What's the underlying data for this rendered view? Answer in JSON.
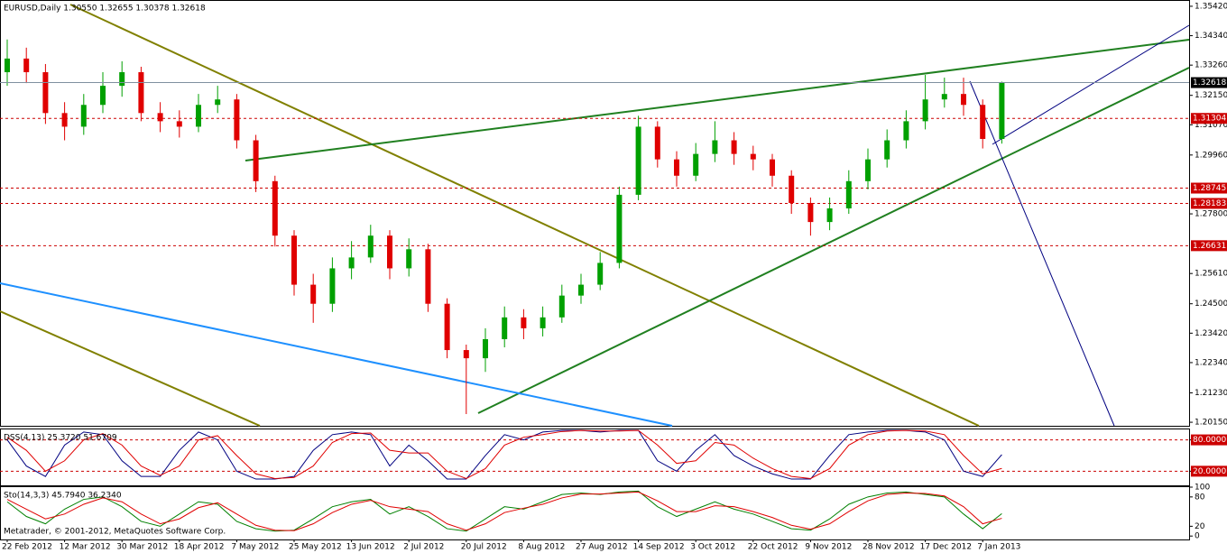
{
  "chart_data": [
    {
      "type": "candlestick",
      "title": "EURUSD,Daily 1.30550 1.32655 1.30378 1.32618",
      "categories": [
        "22 Feb 2012",
        null,
        null,
        "12 Mar 2012",
        null,
        null,
        "30 Mar 2012",
        null,
        null,
        "18 Apr 2012",
        null,
        null,
        "7 May 2012",
        null,
        null,
        "25 May 2012",
        null,
        null,
        "13 Jun 2012",
        null,
        null,
        "2 Jul 2012",
        null,
        null,
        "20 Jul 2012",
        null,
        null,
        "8 Aug 2012",
        null,
        null,
        "27 Aug 2012",
        null,
        null,
        "14 Sep 2012",
        null,
        null,
        "3 Oct 2012",
        null,
        null,
        "22 Oct 2012",
        null,
        null,
        "9 Nov 2012",
        null,
        null,
        "28 Nov 2012",
        null,
        null,
        "17 Dec 2012",
        null,
        null,
        "7 Jan 2013",
        null
      ],
      "open": [
        1.33,
        1.335,
        1.33,
        1.315,
        1.31,
        1.318,
        1.325,
        1.33,
        1.315,
        1.312,
        1.31,
        1.318,
        1.32,
        1.305,
        1.29,
        1.27,
        1.252,
        1.245,
        1.258,
        1.262,
        1.27,
        1.258,
        1.265,
        1.245,
        1.228,
        1.225,
        1.232,
        1.24,
        1.236,
        1.24,
        1.248,
        1.252,
        1.26,
        1.285,
        1.31,
        1.298,
        1.292,
        1.3,
        1.305,
        1.3,
        1.298,
        1.292,
        1.282,
        1.275,
        1.28,
        1.29,
        1.298,
        1.305,
        1.312,
        1.32,
        1.322,
        1.318,
        1.3055
      ],
      "high": [
        1.342,
        1.339,
        1.333,
        1.319,
        1.322,
        1.33,
        1.334,
        1.332,
        1.319,
        1.316,
        1.322,
        1.325,
        1.322,
        1.307,
        1.292,
        1.272,
        1.256,
        1.262,
        1.268,
        1.274,
        1.272,
        1.269,
        1.267,
        1.247,
        1.23,
        1.236,
        1.244,
        1.243,
        1.244,
        1.252,
        1.256,
        1.264,
        1.288,
        1.314,
        1.312,
        1.301,
        1.304,
        1.312,
        1.308,
        1.303,
        1.3,
        1.294,
        1.284,
        1.284,
        1.294,
        1.302,
        1.309,
        1.316,
        1.329,
        1.328,
        1.328,
        1.32,
        1.32655
      ],
      "low": [
        1.325,
        1.326,
        1.311,
        1.305,
        1.307,
        1.315,
        1.321,
        1.312,
        1.308,
        1.306,
        1.308,
        1.315,
        1.302,
        1.286,
        1.266,
        1.248,
        1.238,
        1.242,
        1.254,
        1.26,
        1.254,
        1.255,
        1.242,
        1.225,
        1.2045,
        1.22,
        1.229,
        1.232,
        1.233,
        1.238,
        1.245,
        1.25,
        1.258,
        1.283,
        1.295,
        1.288,
        1.29,
        1.297,
        1.296,
        1.294,
        1.288,
        1.278,
        1.27,
        1.272,
        1.278,
        1.287,
        1.295,
        1.302,
        1.309,
        1.317,
        1.314,
        1.302,
        1.30378
      ],
      "close": [
        1.335,
        1.33,
        1.315,
        1.31,
        1.318,
        1.325,
        1.33,
        1.315,
        1.312,
        1.31,
        1.318,
        1.32,
        1.305,
        1.29,
        1.27,
        1.252,
        1.245,
        1.258,
        1.262,
        1.27,
        1.258,
        1.265,
        1.245,
        1.228,
        1.225,
        1.232,
        1.24,
        1.236,
        1.24,
        1.248,
        1.252,
        1.26,
        1.285,
        1.31,
        1.298,
        1.292,
        1.3,
        1.305,
        1.3,
        1.298,
        1.292,
        1.282,
        1.275,
        1.28,
        1.29,
        1.298,
        1.305,
        1.312,
        1.32,
        1.322,
        1.318,
        1.3055,
        1.32618
      ],
      "up_color": "#00a000",
      "down_color": "#e00000",
      "level_color": "#cc0000",
      "ylim": [
        1.2002,
        1.3565
      ],
      "yticks": [
        {
          "value": 1.3542,
          "label": "1.35420"
        },
        {
          "value": 1.3434,
          "label": "1.34340"
        },
        {
          "value": 1.3326,
          "label": "1.33260"
        },
        {
          "value": 1.3215,
          "label": "1.32150"
        },
        {
          "value": 1.3107,
          "label": "1.31070"
        },
        {
          "value": 1.2996,
          "label": "1.29960"
        },
        {
          "value": 1.278,
          "label": "1.27800"
        },
        {
          "value": 1.2561,
          "label": "1.25610"
        },
        {
          "value": 1.245,
          "label": "1.24500"
        },
        {
          "value": 1.2342,
          "label": "1.23420"
        },
        {
          "value": 1.2234,
          "label": "1.22340"
        },
        {
          "value": 1.2123,
          "label": "1.21230"
        },
        {
          "value": 1.2015,
          "label": "1.20150"
        }
      ],
      "levels": [
        {
          "value": 1.31304,
          "label": "1.31304"
        },
        {
          "value": 1.28745,
          "label": "1.28745"
        },
        {
          "value": 1.28183,
          "label": "1.28183"
        },
        {
          "value": 1.26631,
          "label": "1.26631"
        }
      ],
      "current": {
        "value": 1.32618,
        "label": "1.32618"
      }
    },
    {
      "type": "line",
      "title": "DSS(4,13) 25.3720 51.6709",
      "series": [
        {
          "color": "#000080",
          "values": [
            80,
            30,
            10,
            70,
            95,
            90,
            40,
            10,
            10,
            60,
            95,
            80,
            20,
            5,
            5,
            10,
            60,
            90,
            95,
            90,
            30,
            70,
            40,
            5,
            5,
            50,
            90,
            80,
            95,
            98,
            98,
            95,
            98,
            98,
            40,
            20,
            60,
            90,
            50,
            30,
            15,
            5,
            5,
            50,
            90,
            95,
            98,
            98,
            95,
            80,
            20,
            10,
            51.6709
          ]
        },
        {
          "color": "#e00000",
          "values": [
            85,
            60,
            20,
            40,
            80,
            92,
            70,
            30,
            12,
            30,
            80,
            88,
            50,
            15,
            6,
            8,
            30,
            75,
            92,
            93,
            60,
            55,
            55,
            20,
            6,
            25,
            70,
            85,
            90,
            96,
            98,
            97,
            97,
            98,
            70,
            35,
            40,
            75,
            70,
            45,
            25,
            10,
            6,
            25,
            70,
            90,
            97,
            98,
            97,
            90,
            50,
            15,
            25.372
          ]
        }
      ],
      "ylim": [
        -7,
        100
      ],
      "yticks": [
        20,
        80
      ],
      "level_color": "#cc0000",
      "levels": [
        {
          "value": 80,
          "label": "80.0000"
        },
        {
          "value": 20,
          "label": "20.0000"
        }
      ]
    },
    {
      "type": "line",
      "title": "Sto(14,3,3) 45.7940 36.2340",
      "annotation": "Metatrader, © 2001-2012, MetaQuotes Software Corp.",
      "series": [
        {
          "color": "#008000",
          "values": [
            70,
            40,
            25,
            55,
            75,
            80,
            60,
            30,
            20,
            45,
            70,
            65,
            30,
            15,
            10,
            12,
            35,
            60,
            70,
            75,
            45,
            60,
            40,
            15,
            10,
            35,
            60,
            55,
            70,
            85,
            88,
            85,
            90,
            92,
            60,
            40,
            55,
            70,
            55,
            45,
            30,
            15,
            12,
            35,
            65,
            80,
            88,
            90,
            85,
            80,
            45,
            15,
            45.794
          ]
        },
        {
          "color": "#e00000",
          "values": [
            75,
            55,
            35,
            45,
            65,
            78,
            70,
            45,
            25,
            35,
            58,
            68,
            45,
            22,
            12,
            11,
            25,
            48,
            65,
            73,
            60,
            55,
            50,
            25,
            12,
            25,
            48,
            57,
            65,
            78,
            86,
            86,
            88,
            90,
            72,
            50,
            50,
            62,
            60,
            50,
            38,
            22,
            14,
            25,
            50,
            72,
            85,
            88,
            87,
            82,
            60,
            25,
            36.234
          ]
        }
      ],
      "ylim": [
        -7,
        100
      ],
      "yticks": [
        0,
        20,
        80,
        100
      ],
      "level_color": "#888888",
      "levels": []
    }
  ]
}
